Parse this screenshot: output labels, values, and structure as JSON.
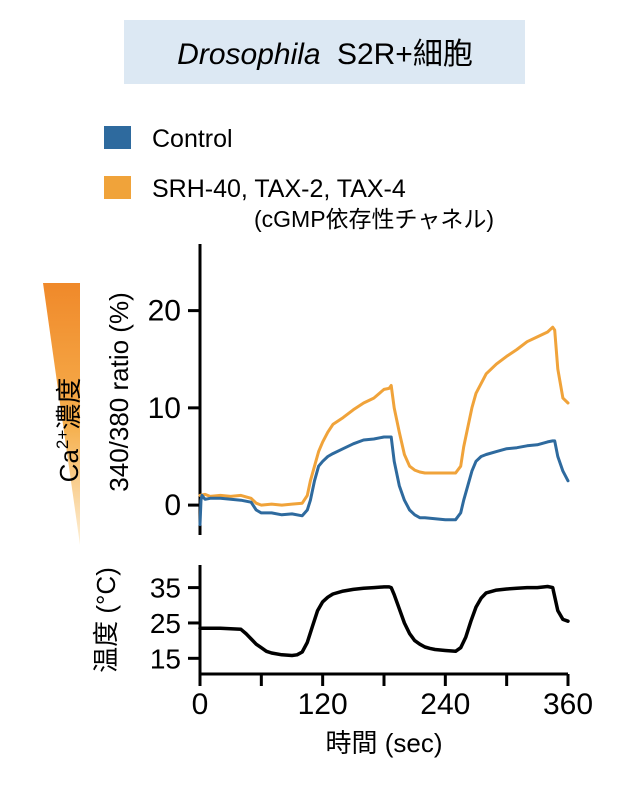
{
  "title": {
    "italic": "Drosophila",
    "rest": "S2R+細胞",
    "background_color": "#dce8f3"
  },
  "legend": {
    "placement": "top-left",
    "items": [
      {
        "label": "Control",
        "color": "#2e6a9e"
      },
      {
        "label": "SRH-40, TAX-2, TAX-4",
        "sublabel": "(cGMP依存性チャネル)",
        "color": "#f0a33a"
      }
    ]
  },
  "chart_data": [
    {
      "type": "line",
      "ylabel_main": "340/380 ratio (%)",
      "ylabel_side": {
        "base": "Ca",
        "superscript": "2+",
        "text": "濃度"
      },
      "ylim": [
        -4,
        25
      ],
      "yticks": [
        0,
        10,
        20
      ],
      "ytick_labels": [
        "0",
        "10",
        "20"
      ],
      "xlim": [
        0,
        360
      ],
      "grid": false,
      "series": [
        {
          "name": "SRH-40, TAX-2, TAX-4",
          "color": "#f0a33a",
          "x": [
            0,
            5,
            10,
            20,
            30,
            40,
            50,
            55,
            60,
            70,
            80,
            90,
            100,
            105,
            108,
            112,
            116,
            120,
            125,
            130,
            140,
            150,
            160,
            170,
            180,
            185,
            187,
            190,
            195,
            200,
            205,
            210,
            215,
            220,
            230,
            240,
            250,
            255,
            258,
            262,
            266,
            270,
            275,
            280,
            290,
            300,
            310,
            320,
            330,
            340,
            345,
            347,
            350,
            355,
            360
          ],
          "y": [
            1.0,
            1.1,
            0.9,
            1.0,
            0.9,
            1.0,
            0.7,
            0.2,
            0.0,
            0.1,
            0.0,
            0.1,
            0.2,
            1.0,
            2.5,
            4.0,
            5.5,
            6.5,
            7.5,
            8.3,
            9.0,
            9.8,
            10.5,
            11.0,
            11.9,
            12.0,
            12.3,
            10.0,
            7.5,
            5.2,
            4.0,
            3.6,
            3.4,
            3.3,
            3.3,
            3.3,
            3.3,
            4.0,
            6.0,
            8.0,
            10.0,
            11.5,
            12.5,
            13.5,
            14.5,
            15.3,
            16.0,
            16.8,
            17.3,
            17.8,
            18.3,
            18.0,
            14.0,
            11.0,
            10.5
          ]
        },
        {
          "name": "Control",
          "color": "#2e6a9e",
          "x": [
            0,
            1,
            2,
            5,
            10,
            20,
            30,
            40,
            50,
            55,
            60,
            70,
            80,
            90,
            100,
            105,
            108,
            112,
            116,
            120,
            125,
            130,
            140,
            150,
            160,
            170,
            180,
            185,
            187,
            190,
            195,
            200,
            205,
            210,
            215,
            220,
            230,
            240,
            250,
            255,
            258,
            262,
            266,
            270,
            275,
            280,
            290,
            300,
            310,
            320,
            330,
            340,
            345,
            347,
            350,
            355,
            360
          ],
          "y": [
            -2.0,
            0.5,
            1.0,
            0.6,
            0.7,
            0.7,
            0.6,
            0.5,
            0.3,
            -0.5,
            -0.8,
            -0.8,
            -1.0,
            -0.9,
            -1.1,
            -0.5,
            0.5,
            2.5,
            4.0,
            4.5,
            5.0,
            5.3,
            5.8,
            6.3,
            6.7,
            6.8,
            7.0,
            7.0,
            7.0,
            4.5,
            2.0,
            0.5,
            -0.5,
            -1.0,
            -1.3,
            -1.3,
            -1.4,
            -1.5,
            -1.5,
            -0.8,
            0.5,
            2.0,
            3.5,
            4.5,
            5.0,
            5.2,
            5.5,
            5.8,
            5.9,
            6.1,
            6.2,
            6.5,
            6.6,
            6.6,
            5.0,
            3.5,
            2.5
          ]
        }
      ]
    },
    {
      "type": "line",
      "ylabel": "温度 (°C)",
      "ylim": [
        10,
        38
      ],
      "yticks": [
        15,
        25,
        35
      ],
      "ytick_labels": [
        "15",
        "25",
        "35"
      ],
      "xlim": [
        0,
        360
      ],
      "xticks": [
        0,
        60,
        120,
        180,
        240,
        300,
        360
      ],
      "xtick_labels": [
        "0",
        "",
        "120",
        "",
        "240",
        "",
        "360"
      ],
      "xlabel": "時間 (sec)",
      "grid": false,
      "series": [
        {
          "color": "#000000",
          "x": [
            0,
            20,
            40,
            45,
            50,
            55,
            60,
            65,
            70,
            80,
            90,
            95,
            100,
            105,
            110,
            115,
            120,
            125,
            130,
            140,
            150,
            160,
            170,
            180,
            185,
            187,
            190,
            195,
            200,
            205,
            210,
            215,
            220,
            225,
            230,
            240,
            250,
            255,
            260,
            265,
            270,
            275,
            280,
            290,
            300,
            310,
            320,
            330,
            340,
            345,
            350,
            355,
            360
          ],
          "y": [
            23.5,
            23.5,
            23.2,
            22.0,
            20.5,
            19.0,
            18.0,
            17.0,
            16.5,
            16.0,
            15.8,
            16.0,
            16.8,
            19.5,
            24.0,
            28.5,
            31.0,
            32.3,
            33.2,
            34.0,
            34.5,
            34.8,
            35.0,
            35.2,
            35.2,
            35.0,
            33.0,
            29.0,
            25.0,
            22.0,
            20.0,
            19.0,
            18.2,
            17.8,
            17.5,
            17.2,
            17.0,
            18.0,
            21.0,
            25.5,
            29.5,
            32.0,
            33.5,
            34.3,
            34.6,
            34.8,
            35.0,
            35.0,
            35.3,
            35.0,
            28.5,
            26.0,
            25.5
          ]
        }
      ]
    }
  ]
}
